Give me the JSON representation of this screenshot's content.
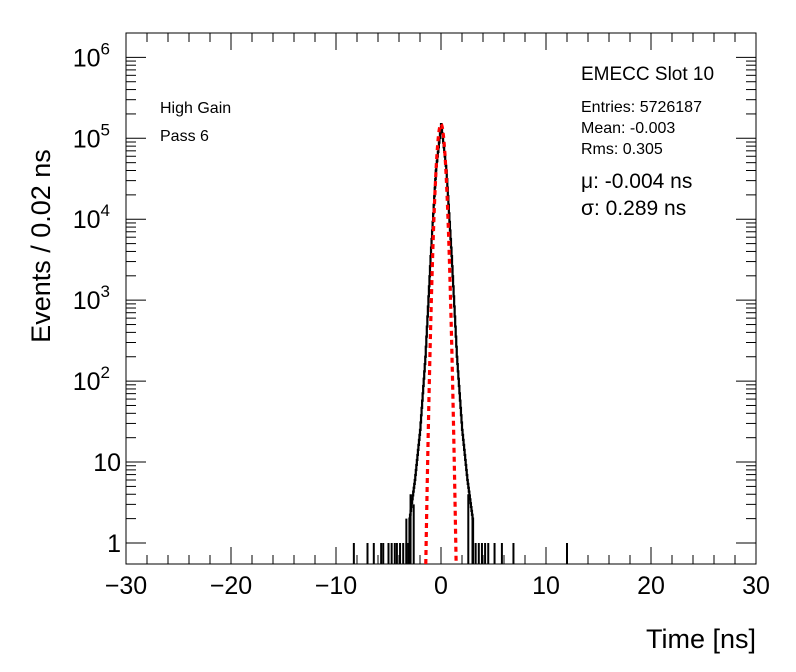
{
  "chart_data": {
    "type": "histogram",
    "xlabel": "Time [ns]",
    "ylabel": "Events / 0.02 ns",
    "xlim": [
      -30,
      30
    ],
    "ylim": [
      0.55,
      2000000
    ],
    "yscale": "log",
    "xticks": [
      -30,
      -20,
      -10,
      0,
      10,
      20,
      30
    ],
    "xtick_labels": [
      "−30",
      "−20",
      "−10",
      "0",
      "10",
      "20",
      "30"
    ],
    "yticks": [
      1,
      10,
      100,
      1000,
      10000,
      100000,
      1000000
    ],
    "ytick_labels": [
      {
        "base": "1",
        "exp": ""
      },
      {
        "base": "10",
        "exp": ""
      },
      {
        "base": "10",
        "exp": "2"
      },
      {
        "base": "10",
        "exp": "3"
      },
      {
        "base": "10",
        "exp": "4"
      },
      {
        "base": "10",
        "exp": "5"
      },
      {
        "base": "10",
        "exp": "6"
      }
    ],
    "grid": false,
    "annotations": {
      "gain": "High Gain",
      "pass": "Pass 6",
      "slot": "EMECC Slot 10",
      "entries": "Entries: 5726187",
      "mean": "Mean: -0.003",
      "rms": "Rms: 0.305",
      "mu": "μ: -0.004 ns",
      "sigma": "σ: 0.289 ns"
    },
    "histogram": {
      "color": "#000000",
      "peak": 150000,
      "core_sigma": 0.305,
      "tail_profile": [
        [
          0,
          150000
        ],
        [
          0.5,
          40000
        ],
        [
          1.0,
          3500
        ],
        [
          1.5,
          200
        ],
        [
          2.0,
          25
        ],
        [
          2.5,
          6
        ],
        [
          3.0,
          2
        ]
      ],
      "sparse_bins": [
        -8.3,
        -7.0,
        -6.4,
        -5.7,
        -5.5,
        -5.0,
        -4.7,
        -4.4,
        -4.2,
        -3.9,
        -3.6,
        -3.3,
        -3.1,
        3.0,
        3.3,
        3.6,
        3.9,
        4.2,
        4.5,
        5.1,
        5.8,
        6.9,
        12.0
      ],
      "sparse_value": 1,
      "spikes": [
        [
          -3.3,
          2
        ],
        [
          -2.9,
          4
        ],
        [
          -2.6,
          3
        ],
        [
          2.6,
          4
        ],
        [
          3.0,
          2
        ]
      ]
    },
    "fit": {
      "type": "gaussian",
      "color": "#ff0000",
      "amplitude": 150000,
      "mean": -0.004,
      "sigma": 0.289,
      "ymin": 0.55
    }
  }
}
